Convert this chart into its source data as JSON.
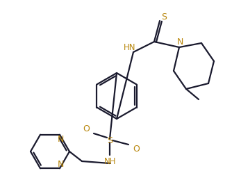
{
  "bg_color": "#ffffff",
  "line_color": "#1a1a2e",
  "atom_colors": {
    "N": "#b8860b",
    "S": "#b8860b",
    "O": "#b8860b",
    "default": "#1a1a2e"
  },
  "figsize": [
    3.47,
    2.59
  ],
  "dpi": 100
}
